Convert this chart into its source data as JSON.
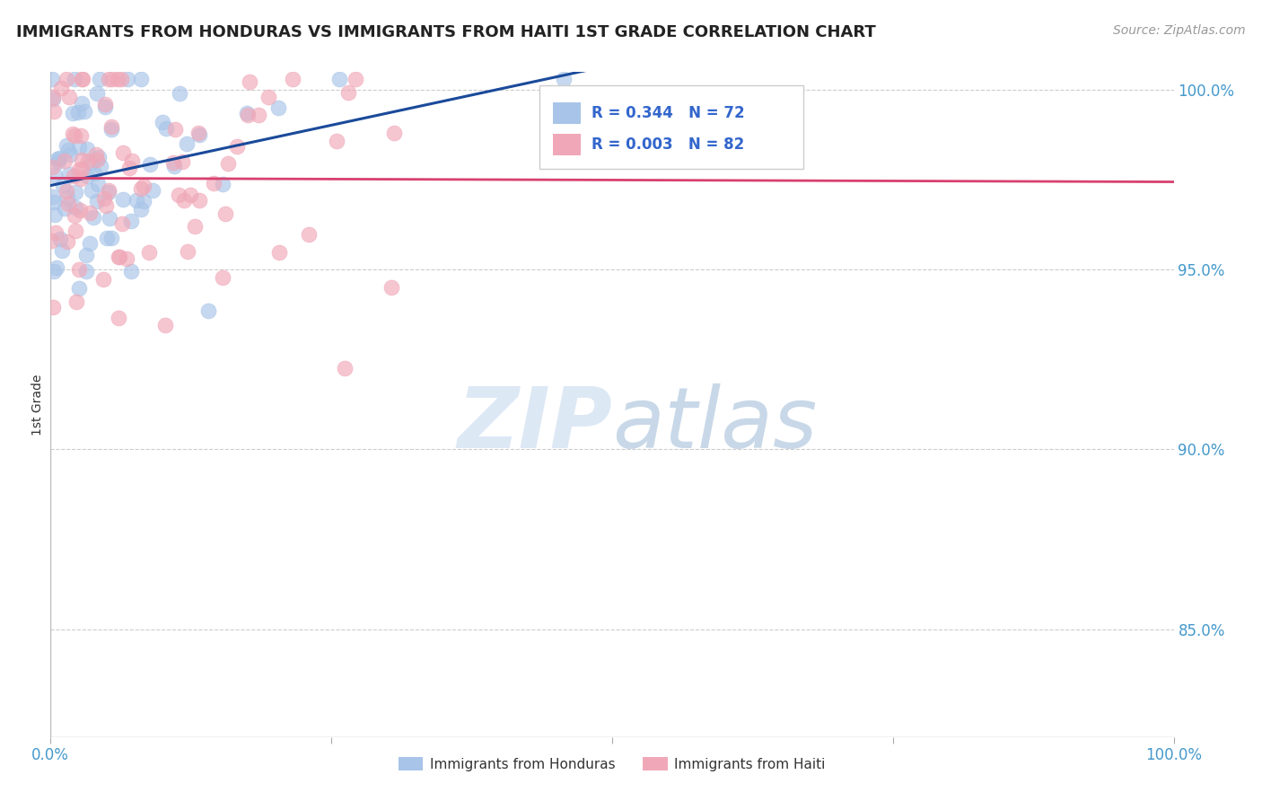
{
  "title": "IMMIGRANTS FROM HONDURAS VS IMMIGRANTS FROM HAITI 1ST GRADE CORRELATION CHART",
  "source": "Source: ZipAtlas.com",
  "xlabel_bottom": "Immigrants from Honduras",
  "xlabel_bottom2": "Immigrants from Haiti",
  "ylabel": "1st Grade",
  "r_honduras": 0.344,
  "n_honduras": 72,
  "r_haiti": 0.003,
  "n_haiti": 82,
  "color_honduras": "#a8c4e8",
  "color_haiti": "#f0a8b8",
  "line_color_honduras": "#1a4a9a",
  "line_color_haiti": "#d84070",
  "watermark_zip": "ZIP",
  "watermark_atlas": "atlas",
  "watermark_color": "#dde8f5",
  "xlim": [
    0.0,
    1.0
  ],
  "ylim": [
    0.82,
    1.005
  ],
  "yticks": [
    0.85,
    0.9,
    0.95,
    1.0
  ],
  "ytick_labels": [
    "85.0%",
    "90.0%",
    "95.0%",
    "100.0%"
  ],
  "background_color": "#ffffff",
  "grid_color": "#cccccc",
  "title_color": "#222222",
  "tick_color": "#4499cc",
  "legend_text_color": "#3366cc"
}
